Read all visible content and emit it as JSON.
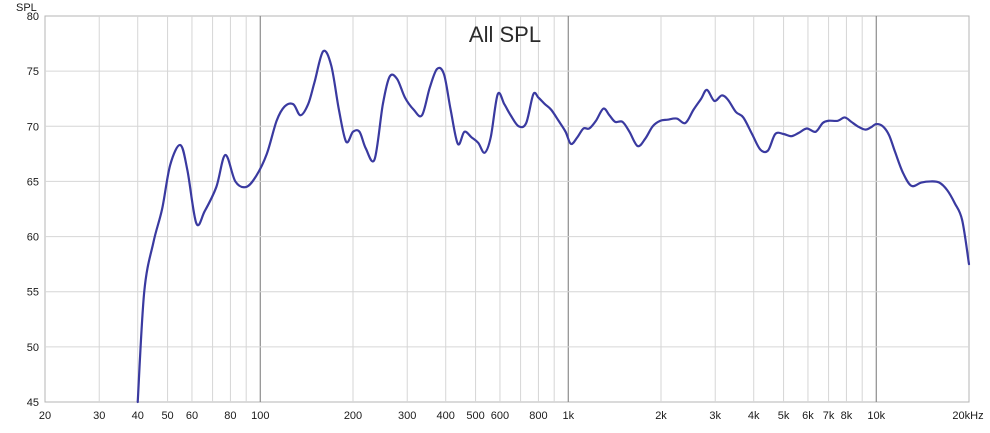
{
  "chart_data": {
    "type": "line",
    "title": "All SPL",
    "ylabel": "SPL",
    "xlabel": "",
    "x_scale": "log",
    "xlim": [
      20,
      20000
    ],
    "ylim": [
      45,
      80
    ],
    "grid": true,
    "x_major": [
      100,
      1000,
      10000
    ],
    "x_ticks": [
      {
        "v": 20,
        "label": "20"
      },
      {
        "v": 30,
        "label": "30"
      },
      {
        "v": 40,
        "label": "40"
      },
      {
        "v": 50,
        "label": "50"
      },
      {
        "v": 60,
        "label": "60"
      },
      {
        "v": 80,
        "label": "80"
      },
      {
        "v": 100,
        "label": "100"
      },
      {
        "v": 200,
        "label": "200"
      },
      {
        "v": 300,
        "label": "300"
      },
      {
        "v": 400,
        "label": "400"
      },
      {
        "v": 500,
        "label": "500"
      },
      {
        "v": 600,
        "label": "600"
      },
      {
        "v": 800,
        "label": "800"
      },
      {
        "v": 1000,
        "label": "1k"
      },
      {
        "v": 2000,
        "label": "2k"
      },
      {
        "v": 3000,
        "label": "3k"
      },
      {
        "v": 4000,
        "label": "4k"
      },
      {
        "v": 5000,
        "label": "5k"
      },
      {
        "v": 6000,
        "label": "6k"
      },
      {
        "v": 7000,
        "label": "7k"
      },
      {
        "v": 8000,
        "label": "8k"
      },
      {
        "v": 10000,
        "label": "10k"
      },
      {
        "v": 20000,
        "label": "20kHz"
      }
    ],
    "y_ticks": [
      45,
      50,
      55,
      60,
      65,
      70,
      75,
      80
    ],
    "series": [
      {
        "color": "#3a3aa0",
        "x": [
          40,
          42,
          45,
          48,
          51,
          55,
          58,
          62,
          66,
          72,
          77,
          83,
          90,
          97,
          105,
          113,
          120,
          128,
          135,
          143,
          150,
          160,
          170,
          180,
          190,
          200,
          210,
          220,
          235,
          250,
          263,
          278,
          295,
          315,
          335,
          355,
          375,
          395,
          415,
          438,
          460,
          485,
          510,
          535,
          560,
          590,
          620,
          650,
          690,
          730,
          770,
          800,
          840,
          880,
          930,
          980,
          1020,
          1070,
          1120,
          1170,
          1230,
          1300,
          1360,
          1420,
          1500,
          1580,
          1680,
          1780,
          1880,
          1990,
          2100,
          2250,
          2400,
          2550,
          2700,
          2820,
          2980,
          3150,
          3300,
          3500,
          3700,
          3950,
          4200,
          4450,
          4700,
          5000,
          5300,
          5600,
          5950,
          6350,
          6700,
          7000,
          7500,
          7900,
          8300,
          8700,
          9200,
          9600,
          10000,
          10500,
          11000,
          11500,
          12200,
          13000,
          14000,
          15000,
          16000,
          17000,
          18000,
          19000,
          20000
        ],
        "y": [
          45,
          55,
          59.5,
          62.5,
          66.5,
          68.3,
          66,
          61.2,
          62.3,
          64.5,
          67.4,
          65,
          64.5,
          65.5,
          67.5,
          70.5,
          71.8,
          72,
          71,
          72,
          74,
          76.8,
          75.5,
          71.5,
          68.6,
          69.5,
          69.5,
          68,
          67,
          72,
          74.5,
          74.3,
          72.6,
          71.5,
          71,
          73.5,
          75.2,
          74.7,
          71.5,
          68.4,
          69.5,
          69,
          68.5,
          67.6,
          69,
          72.9,
          72,
          71,
          70,
          70.3,
          72.9,
          72.6,
          72,
          71.5,
          70.5,
          69.5,
          68.4,
          69,
          69.8,
          69.8,
          70.5,
          71.6,
          71,
          70.4,
          70.4,
          69.5,
          68.2,
          68.9,
          70,
          70.5,
          70.6,
          70.7,
          70.3,
          71.5,
          72.5,
          73.3,
          72.3,
          72.8,
          72.4,
          71.3,
          70.8,
          69.3,
          67.9,
          67.8,
          69.3,
          69.3,
          69.1,
          69.4,
          69.8,
          69.5,
          70.3,
          70.5,
          70.5,
          70.8,
          70.4,
          70,
          69.7,
          69.9,
          70.2,
          70,
          69.2,
          67.7,
          65.8,
          64.6,
          64.9,
          65.0,
          64.9,
          64.2,
          63,
          61.5,
          57.5
        ]
      }
    ]
  }
}
